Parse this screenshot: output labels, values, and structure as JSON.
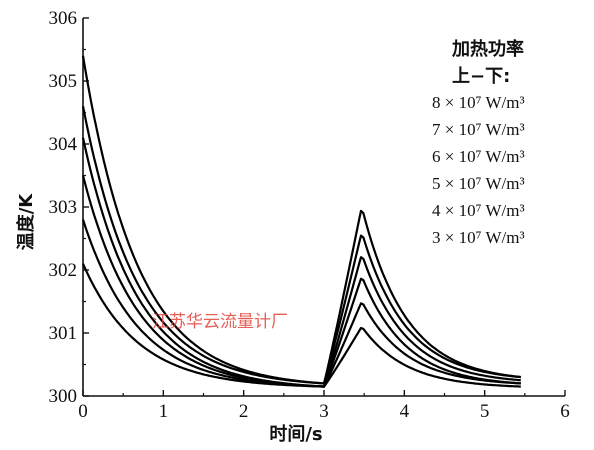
{
  "watermark": "江苏华云流量计厂",
  "chart_data": {
    "type": "line",
    "xlabel": "时间/s",
    "ylabel": "温度/K",
    "xlim": [
      0,
      6
    ],
    "ylim": [
      300,
      306
    ],
    "xticks": [
      "0",
      "1",
      "2",
      "3",
      "4",
      "5",
      "6"
    ],
    "yticks": [
      "300",
      "301",
      "302",
      "303",
      "304",
      "305",
      "306"
    ],
    "legend": {
      "title": "加热功率",
      "subtitle": "上−下:",
      "position": "top-right",
      "entries": [
        "8 × 10⁷ W/m³",
        "7 × 10⁷ W/m³",
        "6 × 10⁷ W/m³",
        "5 × 10⁷ W/m³",
        "4 × 10⁷ W/m³",
        "3 × 10⁷ W/m³"
      ]
    },
    "grid": false,
    "line_color": "#000000",
    "series": [
      {
        "start": 305.4,
        "trough": 300.2,
        "peak": 303.0,
        "end": 300.3
      },
      {
        "start": 304.6,
        "trough": 300.2,
        "peak": 302.6,
        "end": 300.3
      },
      {
        "start": 304.1,
        "trough": 300.15,
        "peak": 302.25,
        "end": 300.25
      },
      {
        "start": 303.5,
        "trough": 300.15,
        "peak": 301.9,
        "end": 300.2
      },
      {
        "start": 302.8,
        "trough": 300.15,
        "peak": 301.5,
        "end": 300.2
      },
      {
        "start": 302.1,
        "trough": 300.15,
        "peak": 301.1,
        "end": 300.15
      }
    ],
    "heating_end_time": 3.0,
    "peak_time": 3.47,
    "end_time": 5.45
  }
}
